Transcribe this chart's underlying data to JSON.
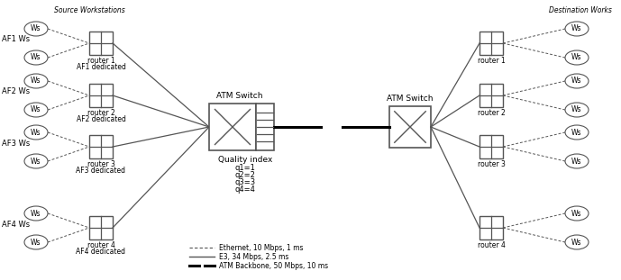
{
  "source_label": "Source Workstations",
  "dest_label": "Destination Works",
  "af_labels": [
    "AF1 Ws",
    "AF2 Ws",
    "AF3 Ws",
    "AF4 Ws"
  ],
  "router_labels_left": [
    "router 1\nAF1 dedicated",
    "router 2\nAF2 dedicated",
    "router 3\nAF3 dedicated",
    "router 4\nAF4 dedicated"
  ],
  "router_labels_right": [
    "router 1",
    "router 2",
    "router 3",
    "router 4"
  ],
  "atm_switch_label": "ATM Switch",
  "quality_index_label": "Quality index",
  "quality_values": [
    "q1=1",
    "q2=2",
    "q3=3",
    "q4=4"
  ],
  "legend_items": [
    {
      "label": "Ethernet, 10 Mbps, 1 ms",
      "style": "dashed"
    },
    {
      "label": "E3, 34 Mbps, 2.5 ms",
      "style": "solid_thin"
    },
    {
      "label": "ATM Backbone, 50 Mbps, 10 ms",
      "style": "solid_thick_dash"
    }
  ],
  "bg_color": "#ffffff",
  "line_color": "#555555",
  "text_color": "#000000",
  "ws_color": "#ffffff",
  "router_color": "#ffffff",
  "figw": 6.89,
  "figh": 3.11,
  "dpi": 100
}
